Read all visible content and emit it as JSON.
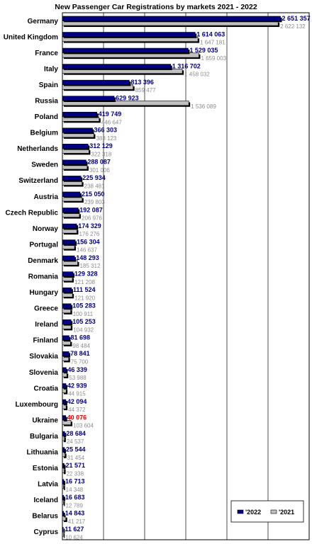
{
  "chart_data": {
    "type": "bar",
    "orientation": "horizontal",
    "title": "New Passenger Car Registrations by markets 2021 - 2022",
    "categories": [
      "Germany",
      "United Kingdom",
      "France",
      "Italy",
      "Spain",
      "Russia",
      "Poland",
      "Belgium",
      "Netherlands",
      "Sweden",
      "Switzerland",
      "Austria",
      "Czech Republic",
      "Norway",
      "Portugal",
      "Denmark",
      "Romania",
      "Hungary",
      "Greece",
      "Ireland",
      "Finland",
      "Slovakia",
      "Slovenia",
      "Croatia",
      "Luxembourg",
      "Ukraine",
      "Bulgaria",
      "Lithuania",
      "Estonia",
      "Latvia",
      "Iceland",
      "Belarus",
      "Cyprus"
    ],
    "series": [
      {
        "name": "'2022",
        "color": "#000080",
        "values": [
          2651357,
          1614063,
          1529035,
          1316702,
          813396,
          629923,
          419749,
          366303,
          312129,
          288087,
          225934,
          215050,
          192087,
          174329,
          156304,
          148293,
          129328,
          111524,
          105283,
          105253,
          81698,
          78841,
          46339,
          42939,
          42094,
          40076,
          28684,
          25544,
          21571,
          16713,
          16683,
          14843,
          11627
        ],
        "labels": [
          "2 651 357",
          "1 614 063",
          "1 529 035",
          "1 316 702",
          "813 396",
          "629 923",
          "419 749",
          "366 303",
          "312 129",
          "288 087",
          "225 934",
          "215 050",
          "192 087",
          "174 329",
          "156 304",
          "148 293",
          "129 328",
          "111 524",
          "105 283",
          "105 253",
          "81 698",
          "78 841",
          "46 339",
          "42 939",
          "42 094",
          "40 076",
          "28 684",
          "25 544",
          "21 571",
          "16 713",
          "16 683",
          "14 843",
          "11 627"
        ]
      },
      {
        "name": "'2021",
        "color": "#c0c0c0",
        "values": [
          2622132,
          1647181,
          1659003,
          1458032,
          859477,
          1536089,
          446647,
          383123,
          322318,
          301006,
          238481,
          239803,
          206976,
          176276,
          146637,
          185312,
          121208,
          121920,
          100911,
          104932,
          98484,
          75700,
          53988,
          44915,
          44372,
          103604,
          24537,
          31454,
          22338,
          14348,
          12789,
          41217,
          10624
        ],
        "labels": [
          "2 622 132",
          "1 647 181",
          "1 659 003",
          "1 458 032",
          "859 477",
          "1 536 089",
          "446 647",
          "383 123",
          "322 318",
          "301 006",
          "238 481",
          "239 803",
          "206 976",
          "176 276",
          "146 637",
          "185 312",
          "121 208",
          "121 920",
          "100 911",
          "104 932",
          "98 484",
          "75 700",
          "53 988",
          "44 915",
          "44 372",
          "103 604",
          "24 537",
          "31 454",
          "22 338",
          "14 348",
          "12 789",
          "41 217",
          "10 624"
        ]
      }
    ],
    "highlight_label_color": "#e00000",
    "highlight_category": "Ukraine",
    "xlim": [
      0,
      3000000
    ],
    "grid": true,
    "legend_position": "bottom-right"
  }
}
